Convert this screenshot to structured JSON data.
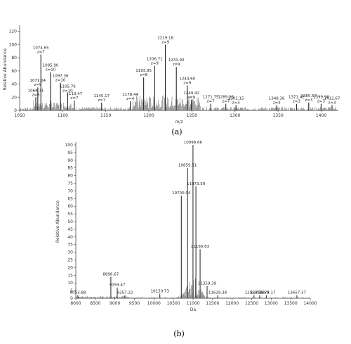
{
  "chart_data": [
    {
      "type": "line",
      "caption": "(a)",
      "xlabel": "m/z",
      "ylabel": "Relative Abundance",
      "xlim": [
        1050,
        1420
      ],
      "ylim": [
        0,
        125
      ],
      "xticks": [
        "1050",
        "1100",
        "1150",
        "1200",
        "1250",
        "1300",
        "1350",
        "1400"
      ],
      "yticks": [
        "0",
        "20",
        "40",
        "60",
        "80",
        "100",
        "120"
      ],
      "peaks": [
        {
          "mz": 1068.71,
          "y": 20,
          "label": [
            "1068.71",
            "z=9"
          ]
        },
        {
          "mz": 1071.04,
          "y": 35,
          "label": [
            "1071.04",
            "z=9"
          ]
        },
        {
          "mz": 1074.65,
          "y": 85,
          "label": [
            "1074.65",
            "z=7"
          ]
        },
        {
          "mz": 1085.9,
          "y": 58,
          "label": [
            "1085.90",
            "z=10"
          ]
        },
        {
          "mz": 1097.36,
          "y": 42,
          "label": [
            "1097.36",
            "z=10"
          ]
        },
        {
          "mz": 1105.76,
          "y": 26,
          "label": [
            "1105.76",
            "z=10"
          ]
        },
        {
          "mz": 1113.47,
          "y": 15,
          "label": [
            "1113.47",
            "z=7"
          ]
        },
        {
          "mz": 1145.17,
          "y": 12,
          "label": [
            "1145.17",
            "z=7"
          ]
        },
        {
          "mz": 1178.44,
          "y": 14,
          "label": [
            "1178.44",
            "z=4"
          ]
        },
        {
          "mz": 1193.95,
          "y": 50,
          "label": [
            "1193.95",
            "z=8"
          ]
        },
        {
          "mz": 1206.71,
          "y": 68,
          "label": [
            "1206.71",
            "z=9"
          ]
        },
        {
          "mz": 1219.18,
          "y": 100,
          "label": [
            "1219.18",
            "z=9"
          ]
        },
        {
          "mz": 1231.9,
          "y": 66,
          "label": [
            "1231.90",
            "z=9"
          ]
        },
        {
          "mz": 1244.6,
          "y": 38,
          "label": [
            "1244.60",
            "z=9"
          ]
        },
        {
          "mz": 1249.42,
          "y": 16,
          "label": [
            "1249.42",
            "z=9"
          ]
        },
        {
          "mz": 1271.75,
          "y": 10,
          "label": [
            "1271.75",
            "z=7"
          ]
        },
        {
          "mz": 1289.36,
          "y": 10,
          "label": [
            "1289.36",
            "z=7"
          ]
        },
        {
          "mz": 1301.15,
          "y": 8,
          "label": [
            "1301.15",
            "z=3"
          ]
        },
        {
          "mz": 1348.36,
          "y": 8,
          "label": [
            "1348.36",
            "z=3"
          ]
        },
        {
          "mz": 1371.42,
          "y": 10,
          "label": [
            "1371.42",
            "z=3"
          ]
        },
        {
          "mz": 1385.57,
          "y": 12,
          "label": [
            "1385.57",
            "z=3"
          ]
        },
        {
          "mz": 1399.96,
          "y": 10,
          "label": [
            "1399.96",
            "z=3"
          ]
        },
        {
          "mz": 1412.67,
          "y": 8,
          "label": [
            "1412.67",
            "z=3"
          ]
        }
      ]
    },
    {
      "type": "line",
      "caption": "(b)",
      "xlabel": "Da",
      "ylabel": "Relative Abundance",
      "xlim": [
        8000,
        14000
      ],
      "ylim": [
        0,
        100
      ],
      "xticks": [
        "8000",
        "8500",
        "9000",
        "9500",
        "10000",
        "10500",
        "11000",
        "11500",
        "12000",
        "12500",
        "13000",
        "13500",
        "14000"
      ],
      "yticks": [
        "0",
        "5",
        "10",
        "15",
        "20",
        "25",
        "30",
        "35",
        "40",
        "45",
        "50",
        "55",
        "60",
        "65",
        "70",
        "75",
        "80",
        "85",
        "90",
        "95",
        "100"
      ],
      "peaks": [
        {
          "mz": 8053.88,
          "y": 2,
          "label": [
            "8053.88"
          ]
        },
        {
          "mz": 8896.67,
          "y": 14,
          "label": [
            "8896.67"
          ]
        },
        {
          "mz": 9059.47,
          "y": 7,
          "label": [
            "9059.47"
          ]
        },
        {
          "mz": 9257.22,
          "y": 2,
          "label": [
            "9257.22"
          ]
        },
        {
          "mz": 10150.73,
          "y": 3,
          "label": [
            "10150.73"
          ]
        },
        {
          "mz": 10700.04,
          "y": 67,
          "label": [
            "10700.04"
          ]
        },
        {
          "mz": 10859.51,
          "y": 85,
          "label": [
            "10859.51"
          ]
        },
        {
          "mz": 10998.66,
          "y": 100,
          "label": [
            "10998.66"
          ]
        },
        {
          "mz": 11073.59,
          "y": 73,
          "label": [
            "11073.59"
          ]
        },
        {
          "mz": 11180.63,
          "y": 32,
          "label": [
            "11180.63"
          ]
        },
        {
          "mz": 11359.39,
          "y": 8,
          "label": [
            "11359.39"
          ]
        },
        {
          "mz": 11629.38,
          "y": 2,
          "label": [
            "11629.38"
          ]
        },
        {
          "mz": 12559.72,
          "y": 2,
          "label": [
            "12559.72"
          ]
        },
        {
          "mz": 12706.58,
          "y": 2,
          "label": [
            "12706.58"
          ]
        },
        {
          "mz": 12875.17,
          "y": 2,
          "label": [
            "12875.17"
          ]
        },
        {
          "mz": 13657.37,
          "y": 2,
          "label": [
            "13657.37"
          ]
        }
      ]
    }
  ]
}
